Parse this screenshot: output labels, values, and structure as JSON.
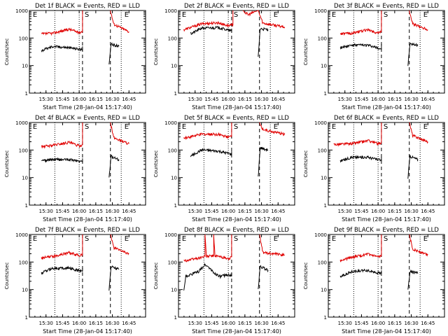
{
  "colors": {
    "events": "#000000",
    "lld": "#e00000",
    "axis": "#000000"
  },
  "chart_data": [
    {
      "type": "line",
      "title": "Det 1f BLACK = Events, RED = LLD",
      "ylabel": "Counts/sec",
      "xlabel": "Start Time (28-Jan-04 15:17:40)",
      "marker_labels": [
        "E",
        "S",
        "E"
      ],
      "yscale": "log",
      "ylim": [
        1,
        1000
      ],
      "yticks": [
        "1",
        "10",
        "100",
        "1000"
      ],
      "xticks": [
        "15:30",
        "15:45",
        "16:00",
        "16:15",
        "16:30",
        "16:45"
      ],
      "series": [
        {
          "color": "red",
          "values": [
            [
              15.43,
              140
            ],
            [
              15.6,
              150
            ],
            [
              15.85,
              210
            ],
            [
              16.0,
              160
            ],
            [
              16.05,
              175
            ],
            [
              16.05,
              1000
            ]
          ]
        },
        {
          "color": "red",
          "values": [
            [
              16.47,
              1000
            ],
            [
              16.52,
              320
            ],
            [
              16.75,
              170
            ]
          ]
        },
        {
          "color": "black",
          "values": [
            [
              15.43,
              35
            ],
            [
              15.6,
              50
            ],
            [
              15.85,
              45
            ],
            [
              16.05,
              38
            ],
            [
              16.05,
              50
            ]
          ]
        },
        {
          "color": "black",
          "values": [
            [
              16.45,
              10
            ],
            [
              16.48,
              60
            ],
            [
              16.6,
              50
            ]
          ]
        }
      ]
    },
    {
      "type": "line",
      "title": "Det 2f BLACK = Events, RED = LLD",
      "ylabel": "Counts/sec",
      "xlabel": "Start Time (28-Jan-04 15:17:40)",
      "marker_labels": [
        "E",
        "S",
        "E"
      ],
      "yscale": "log",
      "ylim": [
        1,
        1000
      ],
      "yticks": [
        "1",
        "10",
        "100",
        "1000"
      ],
      "xticks": [
        "15:30",
        "15:45",
        "16:00",
        "16:15",
        "16:30",
        "16:45"
      ],
      "series": [
        {
          "color": "red",
          "values": [
            [
              15.33,
              200
            ],
            [
              15.6,
              330
            ],
            [
              15.85,
              360
            ],
            [
              16.0,
              280
            ],
            [
              16.07,
              300
            ],
            [
              16.07,
              1000
            ]
          ]
        },
        {
          "color": "red",
          "values": [
            [
              16.22,
              1000
            ],
            [
              16.3,
              700
            ],
            [
              16.4,
              900
            ],
            [
              16.45,
              1000
            ],
            [
              16.52,
              350
            ],
            [
              16.85,
              250
            ]
          ]
        },
        {
          "color": "black",
          "values": [
            [
              15.43,
              140
            ],
            [
              15.6,
              230
            ],
            [
              15.85,
              240
            ],
            [
              16.05,
              180
            ],
            [
              16.05,
              220
            ]
          ]
        },
        {
          "color": "black",
          "values": [
            [
              16.45,
              20
            ],
            [
              16.48,
              220
            ],
            [
              16.6,
              200
            ]
          ]
        }
      ]
    },
    {
      "type": "line",
      "title": "Det 3f BLACK = Events, RED = LLD",
      "ylabel": "Counts/sec",
      "xlabel": "Start Time (28-Jan-04 15:17:40)",
      "marker_labels": [
        "E",
        "S",
        "E"
      ],
      "yscale": "log",
      "ylim": [
        1,
        1000
      ],
      "yticks": [
        "1",
        "10",
        "100",
        "1000"
      ],
      "xticks": [
        "15:30",
        "15:45",
        "16:00",
        "16:15",
        "16:30",
        "16:45"
      ],
      "series": [
        {
          "color": "red",
          "values": [
            [
              15.43,
              140
            ],
            [
              15.6,
              150
            ],
            [
              15.85,
              200
            ],
            [
              16.0,
              150
            ],
            [
              16.05,
              170
            ],
            [
              16.05,
              1000
            ]
          ]
        },
        {
          "color": "red",
          "values": [
            [
              16.47,
              1000
            ],
            [
              16.52,
              330
            ],
            [
              16.75,
              200
            ]
          ]
        },
        {
          "color": "black",
          "values": [
            [
              15.43,
              45
            ],
            [
              15.6,
              55
            ],
            [
              15.85,
              55
            ],
            [
              16.05,
              40
            ],
            [
              16.05,
              60
            ]
          ]
        },
        {
          "color": "black",
          "values": [
            [
              16.45,
              10
            ],
            [
              16.48,
              60
            ],
            [
              16.6,
              55
            ]
          ]
        }
      ]
    },
    {
      "type": "line",
      "title": "Det 4f BLACK = Events, RED = LLD",
      "ylabel": "Counts/sec",
      "xlabel": "Start Time (28-Jan-04 15:17:40)",
      "marker_labels": [
        "E",
        "S",
        "E"
      ],
      "yscale": "log",
      "ylim": [
        1,
        1000
      ],
      "yticks": [
        "1",
        "10",
        "100",
        "1000"
      ],
      "xticks": [
        "15:30",
        "15:45",
        "16:00",
        "16:15",
        "16:30",
        "16:45"
      ],
      "series": [
        {
          "color": "red",
          "values": [
            [
              15.43,
              130
            ],
            [
              15.6,
              150
            ],
            [
              15.85,
              190
            ],
            [
              16.0,
              140
            ],
            [
              16.05,
              160
            ],
            [
              16.05,
              1000
            ]
          ]
        },
        {
          "color": "red",
          "values": [
            [
              16.47,
              1000
            ],
            [
              16.52,
              280
            ],
            [
              16.75,
              170
            ]
          ]
        },
        {
          "color": "black",
          "values": [
            [
              15.43,
              40
            ],
            [
              15.6,
              45
            ],
            [
              15.85,
              45
            ],
            [
              16.05,
              38
            ],
            [
              16.05,
              50
            ]
          ]
        },
        {
          "color": "black",
          "values": [
            [
              16.45,
              10
            ],
            [
              16.48,
              60
            ],
            [
              16.6,
              45
            ]
          ]
        }
      ]
    },
    {
      "type": "line",
      "title": "Det 5f BLACK = Events, RED = LLD",
      "ylabel": "Counts/sec",
      "xlabel": "Start Time (28-Jan-04 15:17:40)",
      "marker_labels": [
        "E",
        "S",
        "E"
      ],
      "yscale": "log",
      "ylim": [
        1,
        1000
      ],
      "yticks": [
        "1",
        "10",
        "100",
        "1000"
      ],
      "xticks": [
        "15:30",
        "15:45",
        "16:00",
        "16:15",
        "16:30",
        "16:45"
      ],
      "series": [
        {
          "color": "red",
          "values": [
            [
              15.33,
              270
            ],
            [
              15.6,
              380
            ],
            [
              15.85,
              370
            ],
            [
              16.0,
              290
            ],
            [
              16.05,
              320
            ],
            [
              16.05,
              1000
            ]
          ]
        },
        {
          "color": "red",
          "values": [
            [
              16.47,
              1000
            ],
            [
              16.52,
              560
            ],
            [
              16.85,
              370
            ]
          ]
        },
        {
          "color": "black",
          "values": [
            [
              15.43,
              60
            ],
            [
              15.6,
              100
            ],
            [
              15.85,
              90
            ],
            [
              16.05,
              70
            ],
            [
              16.05,
              90
            ]
          ]
        },
        {
          "color": "black",
          "values": [
            [
              16.45,
              10
            ],
            [
              16.48,
              120
            ],
            [
              16.6,
              100
            ]
          ]
        }
      ]
    },
    {
      "type": "line",
      "title": "Det 6f BLACK = Events, RED = LLD",
      "ylabel": "Counts/sec",
      "xlabel": "Start Time (28-Jan-04 15:17:40)",
      "marker_labels": [
        "E",
        "S",
        "E"
      ],
      "yscale": "log",
      "ylim": [
        1,
        1000
      ],
      "yticks": [
        "1",
        "10",
        "100",
        "1000"
      ],
      "xticks": [
        "15:30",
        "15:45",
        "16:00",
        "16:15",
        "16:30",
        "16:45"
      ],
      "series": [
        {
          "color": "red",
          "values": [
            [
              15.33,
              160
            ],
            [
              15.6,
              170
            ],
            [
              15.85,
              220
            ],
            [
              16.0,
              170
            ],
            [
              16.05,
              190
            ],
            [
              16.05,
              1000
            ]
          ]
        },
        {
          "color": "red",
          "values": [
            [
              16.47,
              1000
            ],
            [
              16.52,
              340
            ],
            [
              16.75,
              200
            ]
          ]
        },
        {
          "color": "black",
          "values": [
            [
              15.43,
              40
            ],
            [
              15.6,
              55
            ],
            [
              15.85,
              55
            ],
            [
              16.05,
              42
            ],
            [
              16.05,
              55
            ]
          ]
        },
        {
          "color": "black",
          "values": [
            [
              16.45,
              10
            ],
            [
              16.48,
              60
            ],
            [
              16.6,
              45
            ]
          ]
        }
      ]
    },
    {
      "type": "line",
      "title": "Det 7f BLACK = Events, RED = LLD",
      "ylabel": "Counts/sec",
      "xlabel": "Start Time (28-Jan-04 15:17:40)",
      "marker_labels": [
        "E",
        "S",
        "E"
      ],
      "yscale": "log",
      "ylim": [
        1,
        1000
      ],
      "yticks": [
        "1",
        "10",
        "100",
        "1000"
      ],
      "xticks": [
        "15:30",
        "15:45",
        "16:00",
        "16:15",
        "16:30",
        "16:45"
      ],
      "series": [
        {
          "color": "red",
          "values": [
            [
              15.43,
              140
            ],
            [
              15.6,
              160
            ],
            [
              15.85,
              220
            ],
            [
              16.0,
              170
            ],
            [
              16.05,
              190
            ],
            [
              16.05,
              1000
            ]
          ]
        },
        {
          "color": "red",
          "values": [
            [
              16.47,
              1000
            ],
            [
              16.52,
              330
            ],
            [
              16.75,
              200
            ]
          ]
        },
        {
          "color": "black",
          "values": [
            [
              15.43,
              40
            ],
            [
              15.6,
              60
            ],
            [
              15.85,
              60
            ],
            [
              16.05,
              45
            ],
            [
              16.05,
              60
            ]
          ]
        },
        {
          "color": "black",
          "values": [
            [
              16.45,
              10
            ],
            [
              16.48,
              70
            ],
            [
              16.6,
              55
            ]
          ]
        }
      ]
    },
    {
      "type": "line",
      "title": "Det 8f BLACK = Events, RED = LLD",
      "ylabel": "Counts/sec",
      "xlabel": "Start Time (28-Jan-04 15:17:40)",
      "marker_labels": [
        "E",
        "S",
        "E"
      ],
      "yscale": "log",
      "ylim": [
        1,
        1000
      ],
      "yticks": [
        "1",
        "10",
        "100",
        "1000"
      ],
      "xticks": [
        "15:30",
        "15:45",
        "16:00",
        "16:15",
        "16:30",
        "16:45"
      ],
      "series": [
        {
          "color": "red",
          "values": [
            [
              15.33,
              110
            ],
            [
              15.55,
              140
            ],
            [
              15.65,
              160
            ],
            [
              15.65,
              1000
            ],
            [
              15.67,
              160
            ],
            [
              15.78,
              170
            ],
            [
              15.78,
              1000
            ],
            [
              15.8,
              170
            ],
            [
              15.9,
              150
            ],
            [
              16.0,
              130
            ],
            [
              16.05,
              150
            ],
            [
              16.05,
              1000
            ]
          ]
        },
        {
          "color": "red",
          "values": [
            [
              16.47,
              1000
            ],
            [
              16.52,
              220
            ],
            [
              16.85,
              180
            ]
          ]
        },
        {
          "color": "black",
          "values": [
            [
              15.33,
              10
            ],
            [
              15.36,
              30
            ],
            [
              15.55,
              45
            ],
            [
              15.65,
              80
            ],
            [
              15.72,
              60
            ],
            [
              15.78,
              40
            ],
            [
              15.88,
              30
            ],
            [
              16.0,
              35
            ],
            [
              16.05,
              30
            ],
            [
              16.05,
              40
            ]
          ]
        },
        {
          "color": "black",
          "values": [
            [
              16.45,
              10
            ],
            [
              16.48,
              70
            ],
            [
              16.6,
              50
            ]
          ]
        }
      ]
    },
    {
      "type": "line",
      "title": "Det 9f BLACK = Events, RED = LLD",
      "ylabel": "Counts/sec",
      "xlabel": "Start Time (28-Jan-04 15:17:40)",
      "marker_labels": [
        "E",
        "S",
        "E"
      ],
      "yscale": "log",
      "ylim": [
        1,
        1000
      ],
      "yticks": [
        "1",
        "10",
        "100",
        "1000"
      ],
      "xticks": [
        "15:30",
        "15:45",
        "16:00",
        "16:15",
        "16:30",
        "16:45"
      ],
      "series": [
        {
          "color": "red",
          "values": [
            [
              15.43,
              110
            ],
            [
              15.6,
              150
            ],
            [
              15.85,
              190
            ],
            [
              16.0,
              150
            ],
            [
              16.05,
              170
            ],
            [
              16.05,
              1000
            ]
          ]
        },
        {
          "color": "red",
          "values": [
            [
              16.47,
              1000
            ],
            [
              16.52,
              300
            ],
            [
              16.75,
              180
            ]
          ]
        },
        {
          "color": "black",
          "values": [
            [
              15.43,
              30
            ],
            [
              15.6,
              45
            ],
            [
              15.85,
              50
            ],
            [
              16.05,
              38
            ],
            [
              16.05,
              50
            ]
          ]
        },
        {
          "color": "black",
          "values": [
            [
              16.45,
              10
            ],
            [
              16.48,
              45
            ],
            [
              16.6,
              40
            ]
          ]
        }
      ]
    }
  ]
}
